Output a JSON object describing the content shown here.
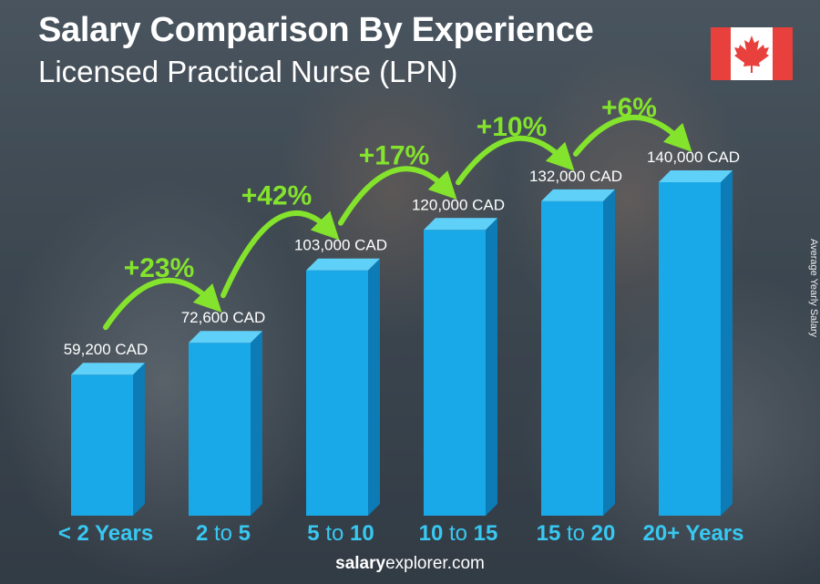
{
  "header": {
    "title": "Salary Comparison By Experience",
    "subtitle": "Licensed Practical Nurse (LPN)"
  },
  "side_label": "Average Yearly Salary",
  "flag": {
    "icon": "canada-flag-icon",
    "red": "#e8403c",
    "white": "#ffffff"
  },
  "footer": {
    "brand_bold": "salary",
    "brand_rest": "explorer.com"
  },
  "colors": {
    "bar_front": "#1aa9e8",
    "bar_side": "#0d7bb5",
    "bar_top": "#5fd0f8",
    "category": "#38c8f2",
    "growth": "#84e32c"
  },
  "chart_data": {
    "type": "bar",
    "categories": [
      "< 2 Years",
      "2 to 5",
      "5 to 10",
      "10 to 15",
      "15 to 20",
      "20+ Years"
    ],
    "values": [
      59200,
      72600,
      103000,
      120000,
      132000,
      140000
    ],
    "value_labels": [
      "59,200 CAD",
      "72,600 CAD",
      "103,000 CAD",
      "120,000 CAD",
      "132,000 CAD",
      "140,000 CAD"
    ],
    "growth_labels": [
      "+23%",
      "+42%",
      "+17%",
      "+10%",
      "+6%"
    ],
    "ylabel": "Average Yearly Salary",
    "unit": "CAD",
    "ylim": [
      0,
      140000
    ],
    "grid": false
  }
}
